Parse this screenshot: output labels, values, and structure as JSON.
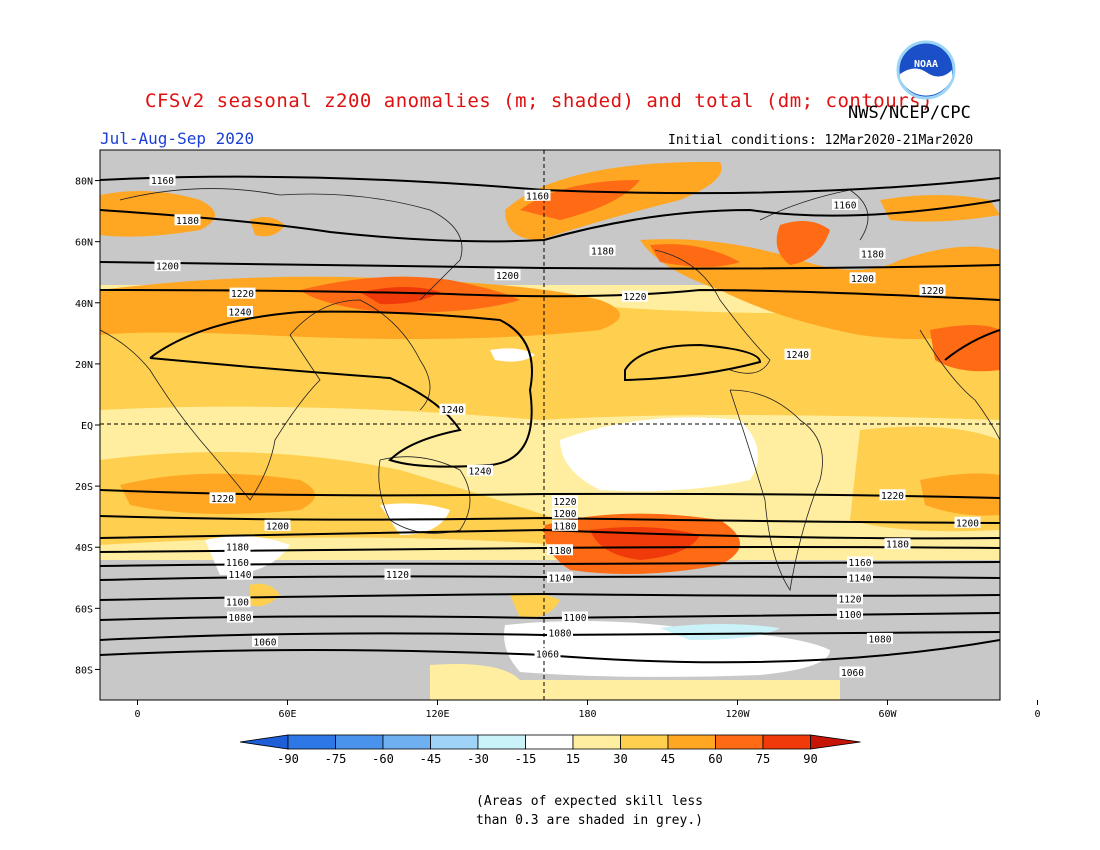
{
  "header": {
    "title": "CFSv2 seasonal z200 anomalies (m; shaded) and total (dm; contours)",
    "organization": "NWS/NCEP/CPC",
    "logo_text": "NOAA",
    "season": "Jul-Aug-Sep 2020",
    "initial_conditions": "Initial conditions: 12Mar2020-21Mar2020"
  },
  "map": {
    "lon_labels": [
      "0",
      "60E",
      "120E",
      "180",
      "120W",
      "60W",
      "0"
    ],
    "lat_labels": [
      "80N",
      "60N",
      "40N",
      "20N",
      "EQ",
      "20S",
      "40S",
      "60S",
      "80S"
    ],
    "contour_labels": [
      {
        "text": "1160",
        "lon": 10,
        "lat": 80
      },
      {
        "text": "1160",
        "lon": 160,
        "lat": 75
      },
      {
        "text": "1160",
        "lon": 283,
        "lat": 72
      },
      {
        "text": "1180",
        "lon": 20,
        "lat": 67
      },
      {
        "text": "1180",
        "lon": 186,
        "lat": 57
      },
      {
        "text": "1180",
        "lon": 294,
        "lat": 56
      },
      {
        "text": "1200",
        "lon": 12,
        "lat": 52
      },
      {
        "text": "1200",
        "lon": 148,
        "lat": 49
      },
      {
        "text": "1200",
        "lon": 290,
        "lat": 48
      },
      {
        "text": "1220",
        "lon": 42,
        "lat": 43
      },
      {
        "text": "1220",
        "lon": 199,
        "lat": 42
      },
      {
        "text": "1220",
        "lon": 318,
        "lat": 44
      },
      {
        "text": "1240",
        "lon": 41,
        "lat": 37
      },
      {
        "text": "1240",
        "lon": 264,
        "lat": 23
      },
      {
        "text": "1240",
        "lon": 126,
        "lat": 5
      },
      {
        "text": "1240",
        "lon": 137,
        "lat": -15
      },
      {
        "text": "1220",
        "lon": 34,
        "lat": -24
      },
      {
        "text": "1220",
        "lon": 171,
        "lat": -25
      },
      {
        "text": "1220",
        "lon": 302,
        "lat": -23
      },
      {
        "text": "1200",
        "lon": 56,
        "lat": -33
      },
      {
        "text": "1200",
        "lon": 171,
        "lat": -29
      },
      {
        "text": "1200",
        "lon": 332,
        "lat": -32
      },
      {
        "text": "1180",
        "lon": 171,
        "lat": -33
      },
      {
        "text": "1180",
        "lon": 40,
        "lat": -40
      },
      {
        "text": "1180",
        "lon": 169,
        "lat": -41
      },
      {
        "text": "1180",
        "lon": 304,
        "lat": -39
      },
      {
        "text": "1160",
        "lon": 40,
        "lat": -45
      },
      {
        "text": "1160",
        "lon": 289,
        "lat": -45
      },
      {
        "text": "1140",
        "lon": 41,
        "lat": -49
      },
      {
        "text": "1140",
        "lon": 169,
        "lat": -50
      },
      {
        "text": "1140",
        "lon": 289,
        "lat": -50
      },
      {
        "text": "1120",
        "lon": 104,
        "lat": -49
      },
      {
        "text": "1120",
        "lon": 285,
        "lat": -57
      },
      {
        "text": "1100",
        "lon": 40,
        "lat": -58
      },
      {
        "text": "1100",
        "lon": 175,
        "lat": -63
      },
      {
        "text": "1100",
        "lon": 285,
        "lat": -62
      },
      {
        "text": "1080",
        "lon": 41,
        "lat": -63
      },
      {
        "text": "1080",
        "lon": 169,
        "lat": -68
      },
      {
        "text": "1080",
        "lon": 297,
        "lat": -70
      },
      {
        "text": "1060",
        "lon": 51,
        "lat": -71
      },
      {
        "text": "1060",
        "lon": 164,
        "lat": -75
      },
      {
        "text": "1060",
        "lon": 286,
        "lat": -81
      }
    ]
  },
  "colorbar": {
    "labels": [
      "-90",
      "-75",
      "-60",
      "-45",
      "-30",
      "-15",
      "15",
      "30",
      "45",
      "60",
      "75",
      "90"
    ],
    "colors": [
      "#1e5fd8",
      "#2d78e6",
      "#4a93ec",
      "#6fb0f0",
      "#9fd3f7",
      "#c9f2f9",
      "#ffffff",
      "#ffeea0",
      "#ffd050",
      "#ffa622",
      "#ff6a14",
      "#f03a0a",
      "#c61406"
    ]
  },
  "note": {
    "line1": "(Areas of expected skill less",
    "line2": "than 0.3 are shaded in grey.)"
  }
}
